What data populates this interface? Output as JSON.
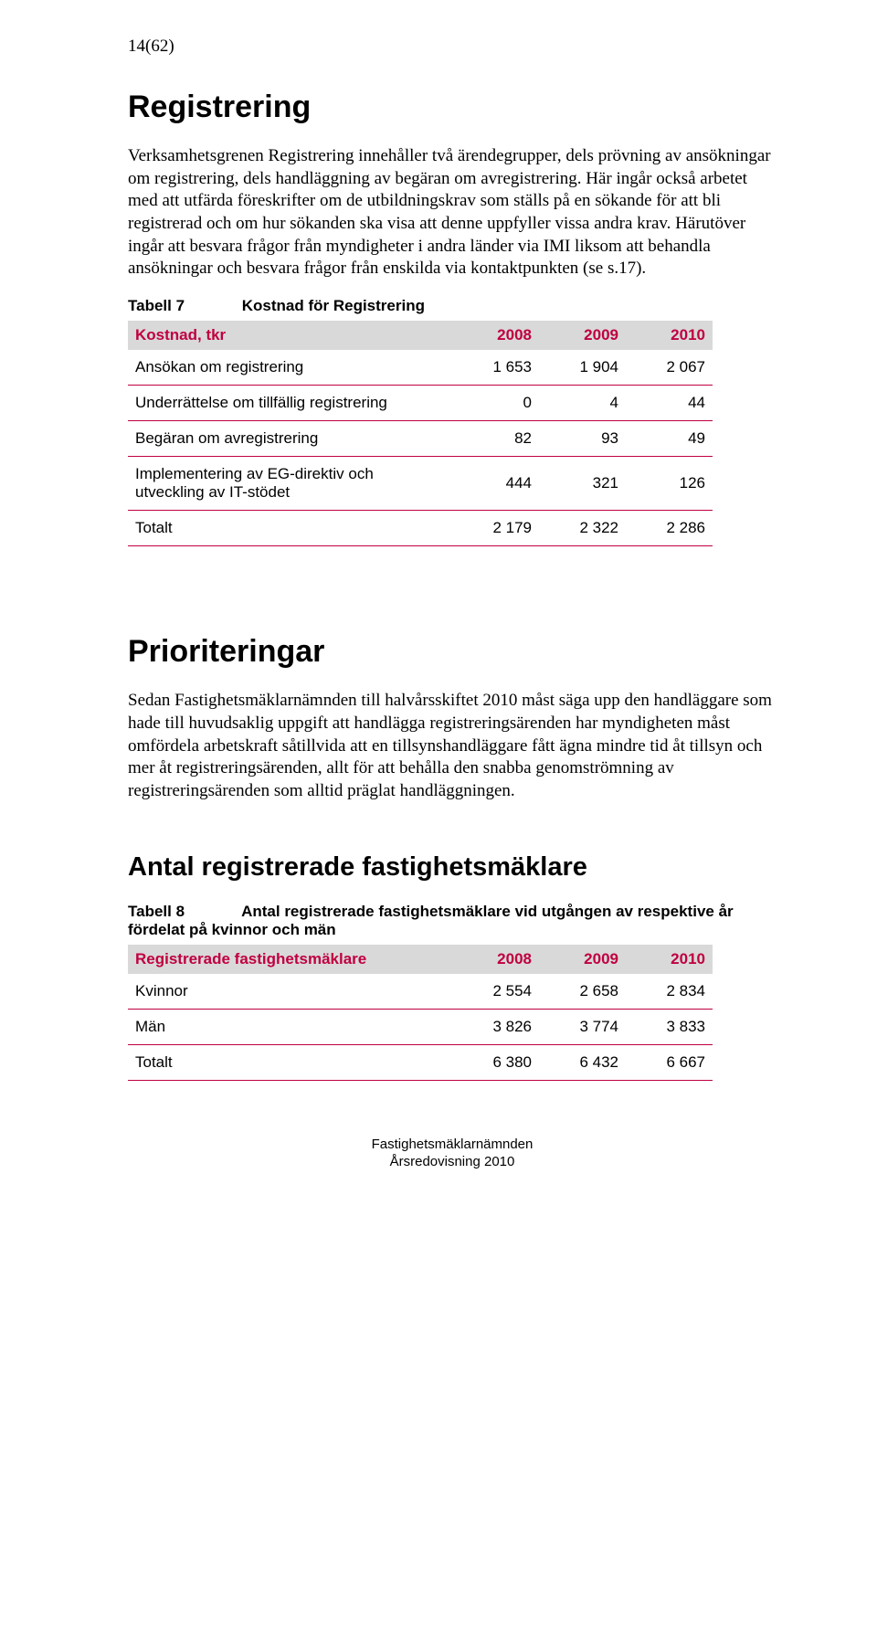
{
  "page_number": "14(62)",
  "colors": {
    "accent": "#c00040",
    "header_bg": "#d9d9d9",
    "text": "#000000",
    "bg": "#ffffff"
  },
  "section1": {
    "title": "Registrering",
    "para1": "Verksamhetsgrenen Registrering innehåller två ärendegrupper, dels prövning av ansökningar om registrering, dels handläggning av begäran om avregistrering. Här ingår också arbetet med att utfärda föreskrifter om de utbildningskrav som ställs på en sökande för att bli registrerad och om hur sökanden ska visa att denne uppfyller vissa andra krav. Härutöver ingår att besvara frågor från myndigheter i andra länder via IMI liksom att behandla ansökningar och besvara frågor från enskilda via kontaktpunkten (se s.17)."
  },
  "table7": {
    "label": "Tabell 7",
    "title": "Kostnad för Registrering",
    "header_label": "Kostnad, tkr",
    "years": [
      "2008",
      "2009",
      "2010"
    ],
    "rows": [
      {
        "label": "Ansökan om registrering",
        "v": [
          "1 653",
          "1 904",
          "2 067"
        ]
      },
      {
        "label": "Underrättelse om tillfällig registrering",
        "v": [
          "0",
          "4",
          "44"
        ]
      },
      {
        "label": "Begäran om avregistrering",
        "v": [
          "82",
          "93",
          "49"
        ]
      },
      {
        "label": "Implementering av EG-direktiv och utveckling av IT-stödet",
        "v": [
          "444",
          "321",
          "126"
        ]
      },
      {
        "label": "Totalt",
        "v": [
          "2 179",
          "2 322",
          "2 286"
        ]
      }
    ]
  },
  "section2": {
    "title": "Prioriteringar",
    "para1": "Sedan Fastighetsmäklarnämnden till halvårsskiftet 2010 måst säga upp den handläggare som hade till huvudsaklig uppgift att handlägga registreringsärenden har myndigheten måst omfördela arbetskraft såtillvida att en tillsynshandläggare fått ägna mindre tid åt tillsyn och mer åt registreringsärenden, allt för att behålla den snabba genomströmning av registreringsärenden som alltid präglat handlägg­ningen."
  },
  "section3": {
    "title": "Antal registrerade fastighetsmäklare"
  },
  "table8": {
    "label": "Tabell 8",
    "title": "Antal registrerade fastighetsmäklare vid utgången av respektive år fördelat på kvinnor och män",
    "header_label": "Registrerade fastighetsmäklare",
    "years": [
      "2008",
      "2009",
      "2010"
    ],
    "rows": [
      {
        "label": "Kvinnor",
        "v": [
          "2 554",
          "2 658",
          "2 834"
        ]
      },
      {
        "label": "Män",
        "v": [
          "3 826",
          "3 774",
          "3 833"
        ]
      },
      {
        "label": "Totalt",
        "v": [
          "6 380",
          "6 432",
          "6 667"
        ]
      }
    ]
  },
  "footer": {
    "line1": "Fastighetsmäklarnämnden",
    "line2": "Årsredovisning 2010"
  }
}
